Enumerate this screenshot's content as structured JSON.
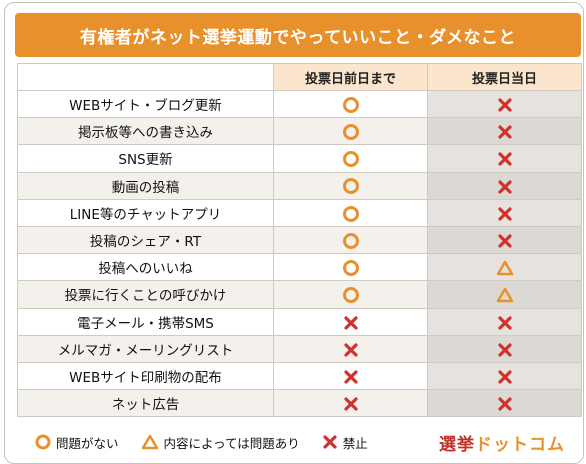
{
  "title": "有権者がネット選挙運動でやっていいこと・ダメなこと",
  "columns": {
    "before": "投票日前日まで",
    "day": "投票日当日"
  },
  "rows": [
    {
      "label": "WEBサイト・ブログ更新",
      "before": "circle",
      "day": "cross"
    },
    {
      "label": "掲示板等への書き込み",
      "before": "circle",
      "day": "cross"
    },
    {
      "label": "SNS更新",
      "before": "circle",
      "day": "cross"
    },
    {
      "label": "動画の投稿",
      "before": "circle",
      "day": "cross"
    },
    {
      "label": "LINE等のチャットアプリ",
      "before": "circle",
      "day": "cross"
    },
    {
      "label": "投稿のシェア・RT",
      "before": "circle",
      "day": "cross"
    },
    {
      "label": "投稿へのいいね",
      "before": "circle",
      "day": "triangle"
    },
    {
      "label": "投票に行くことの呼びかけ",
      "before": "circle",
      "day": "triangle"
    },
    {
      "label": "電子メール・携帯SMS",
      "before": "cross",
      "day": "cross"
    },
    {
      "label": "メルマガ・メーリングリスト",
      "before": "cross",
      "day": "cross"
    },
    {
      "label": "WEBサイト印刷物の配布",
      "before": "cross",
      "day": "cross"
    },
    {
      "label": "ネット広告",
      "before": "cross",
      "day": "cross"
    }
  ],
  "legend": {
    "circle": "問題がない",
    "triangle": "内容によっては問題あり",
    "cross": "禁止"
  },
  "logo": {
    "first": "選挙",
    "rest": "ドットコム"
  },
  "colors": {
    "accent": "#e8912c",
    "cross": "#d0312d"
  }
}
